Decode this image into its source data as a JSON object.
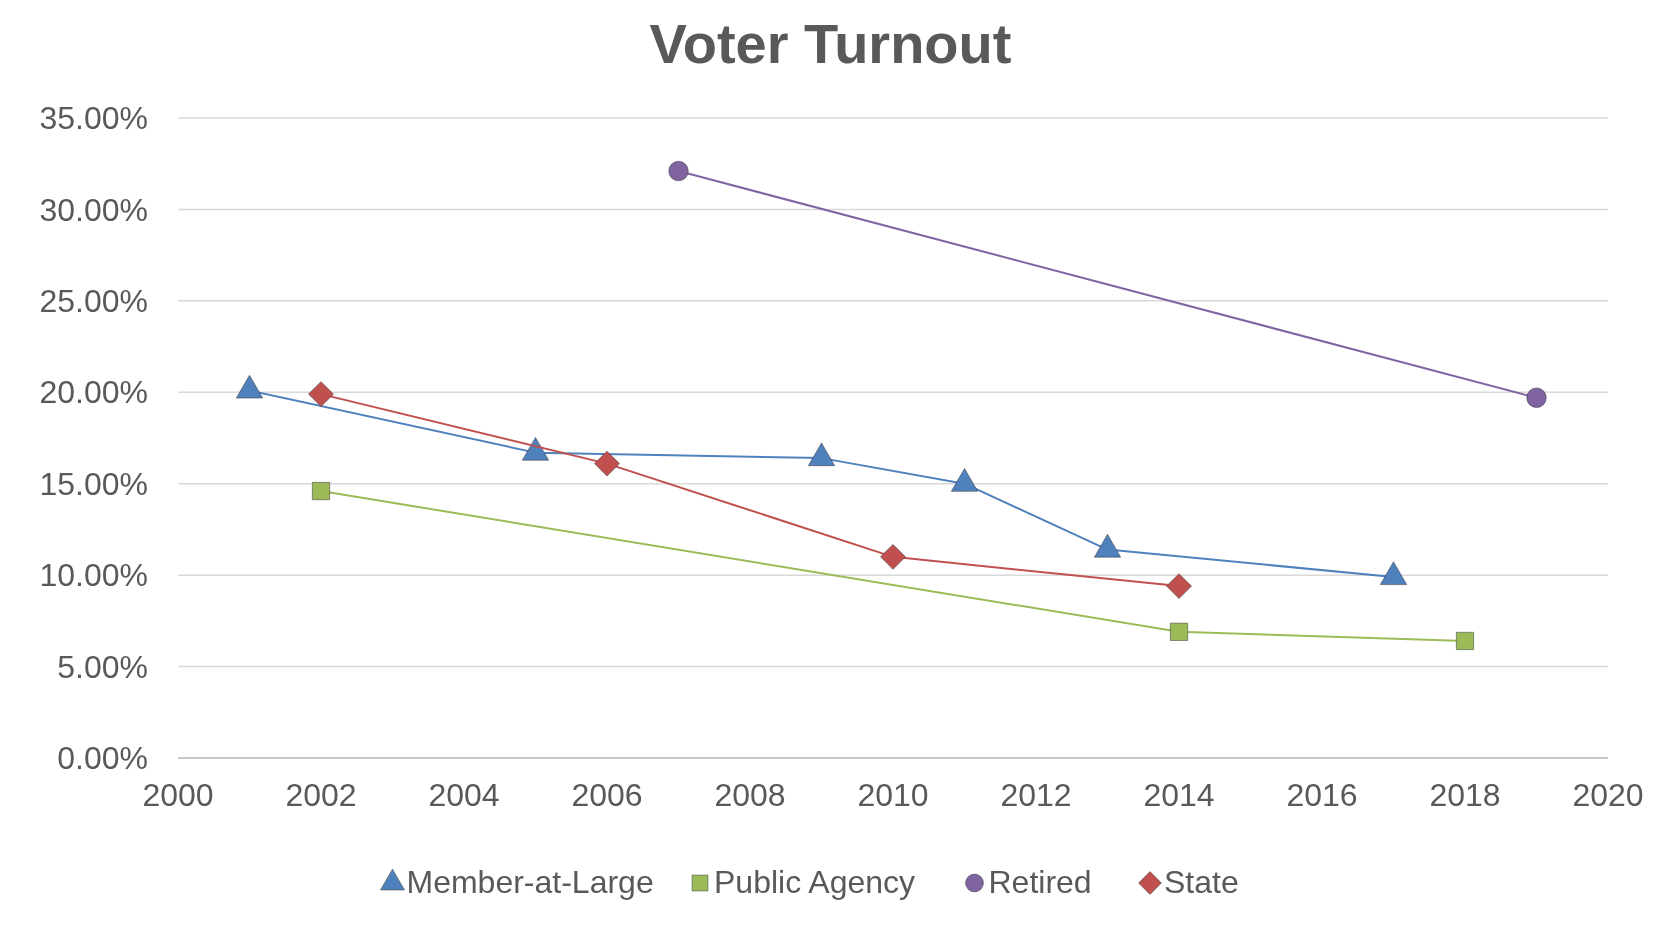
{
  "chart_data": {
    "type": "line",
    "title": "Voter Turnout",
    "xlim": [
      2000,
      2020
    ],
    "xticks": [
      2000,
      2002,
      2004,
      2006,
      2008,
      2010,
      2012,
      2014,
      2016,
      2018,
      2020
    ],
    "ylim": [
      0,
      35
    ],
    "yticks": [
      {
        "value": 0,
        "label": "0.00%"
      },
      {
        "value": 5,
        "label": "5.00%"
      },
      {
        "value": 10,
        "label": "10.00%"
      },
      {
        "value": 15,
        "label": "15.00%"
      },
      {
        "value": 20,
        "label": "20.00%"
      },
      {
        "value": 25,
        "label": "25.00%"
      },
      {
        "value": 30,
        "label": "30.00%"
      },
      {
        "value": 35,
        "label": "35.00%"
      }
    ],
    "grid": "y",
    "legend": "bottom",
    "line_style": "solid",
    "series": [
      {
        "name": "Member-at-Large",
        "color": "#4f81bd",
        "marker": "triangle",
        "x": [
          2001,
          2005,
          2009,
          2011,
          2013,
          2017
        ],
        "values": [
          20.1,
          16.7,
          16.4,
          15.0,
          11.4,
          9.9
        ]
      },
      {
        "name": "Public Agency",
        "color": "#9bbb59",
        "marker": "square",
        "x": [
          2002,
          2014,
          2018
        ],
        "values": [
          14.6,
          6.9,
          6.4
        ]
      },
      {
        "name": "Retired",
        "color": "#8064a2",
        "marker": "circle",
        "x": [
          2007,
          2019
        ],
        "values": [
          32.1,
          19.7
        ]
      },
      {
        "name": "State",
        "color": "#c0504d",
        "marker": "diamond",
        "x": [
          2002,
          2006,
          2010,
          2014
        ],
        "values": [
          19.9,
          16.1,
          11.0,
          9.4
        ]
      }
    ]
  }
}
